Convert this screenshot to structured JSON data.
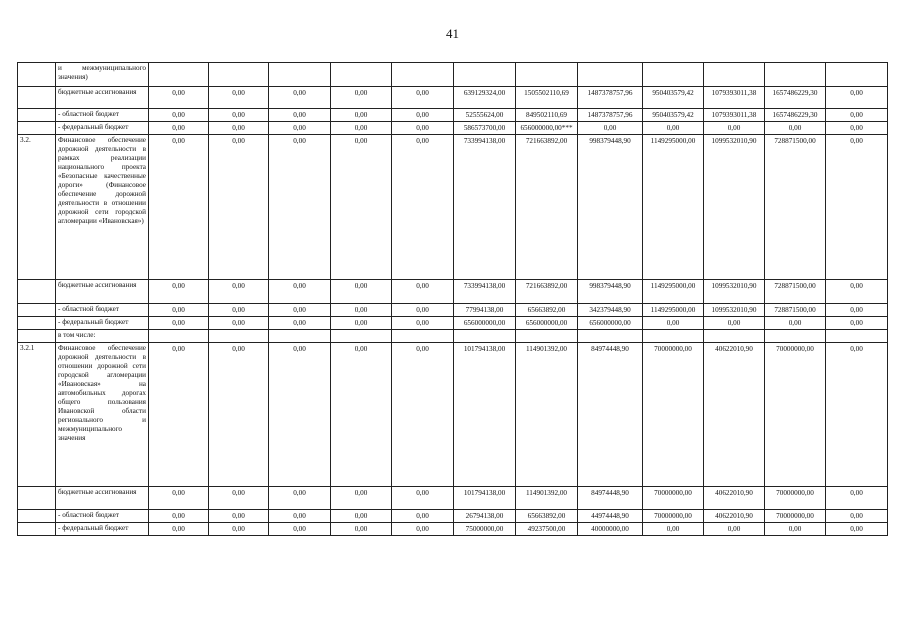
{
  "page_number": "41",
  "rows": [
    {
      "code": "",
      "name": "и межмуниципального значения)",
      "values": [
        "",
        "",
        "",
        "",
        "",
        "",
        "",
        "",
        "",
        "",
        "",
        ""
      ]
    },
    {
      "code": "",
      "name": "бюджетные ассигнования",
      "values": [
        "0,00",
        "0,00",
        "0,00",
        "0,00",
        "0,00",
        "639129324,00",
        "1505502110,69",
        "1487378757,96",
        "950403579,42",
        "1079393011,38",
        "1657486229,30",
        "0,00"
      ]
    },
    {
      "code": "",
      "name": "- областной бюджет",
      "values": [
        "0,00",
        "0,00",
        "0,00",
        "0,00",
        "0,00",
        "52555624,00",
        "849502110,69",
        "1487378757,96",
        "950403579,42",
        "1079393011,38",
        "1657486229,30",
        "0,00"
      ]
    },
    {
      "code": "",
      "name": "- федеральный бюджет",
      "values": [
        "0,00",
        "0,00",
        "0,00",
        "0,00",
        "0,00",
        "586573700,00",
        "656000000,00***",
        "0,00",
        "0,00",
        "0,00",
        "0,00",
        "0,00"
      ]
    },
    {
      "code": "3.2.",
      "name": "Финансовое обеспечение дорожной деятельности в рамках реализации национального проекта «Безопасные качественные дороги» (Финансовое обеспечение дорожной деятельности в отношении дорожной сети городской агломерации «Ивановская»)",
      "values": [
        "0,00",
        "0,00",
        "0,00",
        "0,00",
        "0,00",
        "733994138,00",
        "721663892,00",
        "998379448,90",
        "1149295000,00",
        "1099532010,90",
        "728871500,00",
        "0,00"
      ]
    },
    {
      "code": "",
      "name": "бюджетные ассигнования",
      "values": [
        "0,00",
        "0,00",
        "0,00",
        "0,00",
        "0,00",
        "733994138,00",
        "721663892,00",
        "998379448,90",
        "1149295000,00",
        "1099532010,90",
        "728871500,00",
        "0,00"
      ]
    },
    {
      "code": "",
      "name": "- областной бюджет",
      "values": [
        "0,00",
        "0,00",
        "0,00",
        "0,00",
        "0,00",
        "77994138,00",
        "65663892,00",
        "342379448,90",
        "1149295000,00",
        "1099532010,90",
        "728871500,00",
        "0,00"
      ]
    },
    {
      "code": "",
      "name": "- федеральный бюджет",
      "values": [
        "0,00",
        "0,00",
        "0,00",
        "0,00",
        "0,00",
        "656000000,00",
        "656000000,00",
        "656000000,00",
        "0,00",
        "0,00",
        "0,00",
        "0,00"
      ]
    },
    {
      "code": "",
      "name": "в том числе:",
      "values": [
        "",
        "",
        "",
        "",
        "",
        "",
        "",
        "",
        "",
        "",
        "",
        ""
      ]
    },
    {
      "code": "3.2.1",
      "name": "Финансовое обеспечение дорожной деятельности в отношении дорожной сети городской агломерации «Ивановская» на автомобильных дорогах общего пользования Ивановской области регионального и межмуниципального значения",
      "values": [
        "0,00",
        "0,00",
        "0,00",
        "0,00",
        "0,00",
        "101794138,00",
        "114901392,00",
        "84974448,90",
        "70000000,00",
        "40622010,90",
        "70000000,00",
        "0,00"
      ]
    },
    {
      "code": "",
      "name": "бюджетные ассигнования",
      "values": [
        "0,00",
        "0,00",
        "0,00",
        "0,00",
        "0,00",
        "101794138,00",
        "114901392,00",
        "84974448,90",
        "70000000,00",
        "40622010,90",
        "70000000,00",
        "0,00"
      ]
    },
    {
      "code": "",
      "name": "- областной бюджет",
      "values": [
        "0,00",
        "0,00",
        "0,00",
        "0,00",
        "0,00",
        "26794138,00",
        "65663892,00",
        "44974448,90",
        "70000000,00",
        "40622010,90",
        "70000000,00",
        "0,00"
      ]
    },
    {
      "code": "",
      "name": "- федеральный бюджет",
      "values": [
        "0,00",
        "0,00",
        "0,00",
        "0,00",
        "0,00",
        "75000000,00",
        "49237500,00",
        "40000000,00",
        "0,00",
        "0,00",
        "0,00",
        "0,00"
      ]
    }
  ]
}
